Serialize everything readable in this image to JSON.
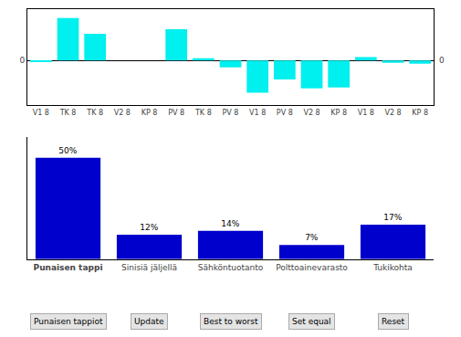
{
  "chart_data": [
    {
      "type": "bar",
      "categories": [
        "V1 8",
        "TK 8",
        "TK 8",
        "V2 8",
        "KP 8",
        "PV 8",
        "TK 8",
        "PV 8",
        "V1 8",
        "PV 8",
        "V2 8",
        "KP 8",
        "V1 8",
        "V2 8",
        "KP 8"
      ],
      "values": [
        -0.02,
        0.95,
        0.6,
        0.0,
        0.0,
        0.7,
        0.05,
        -0.15,
        -0.72,
        -0.42,
        -0.62,
        -0.6,
        0.08,
        -0.05,
        -0.07
      ],
      "color": "#00EFEF",
      "ylim": [
        -1.0,
        1.15
      ],
      "yticks": [
        0
      ]
    },
    {
      "type": "bar",
      "categories": [
        "Punaisen tappi",
        "Sinisiä jäljellä",
        "Sähköntuotanto",
        "Polttoainevarasto",
        "Tukikohta"
      ],
      "values": [
        50,
        12,
        14,
        7,
        17
      ],
      "value_labels": [
        "50%",
        "12%",
        "14%",
        "7%",
        "17%"
      ],
      "data_labels": true,
      "color": "#0000CC",
      "ylim": [
        0,
        60
      ],
      "tick_labels": "x",
      "annotations": [
        "Punaisen tappiot",
        "Update",
        "Best to worst",
        "Set equal",
        "Reset"
      ]
    }
  ]
}
